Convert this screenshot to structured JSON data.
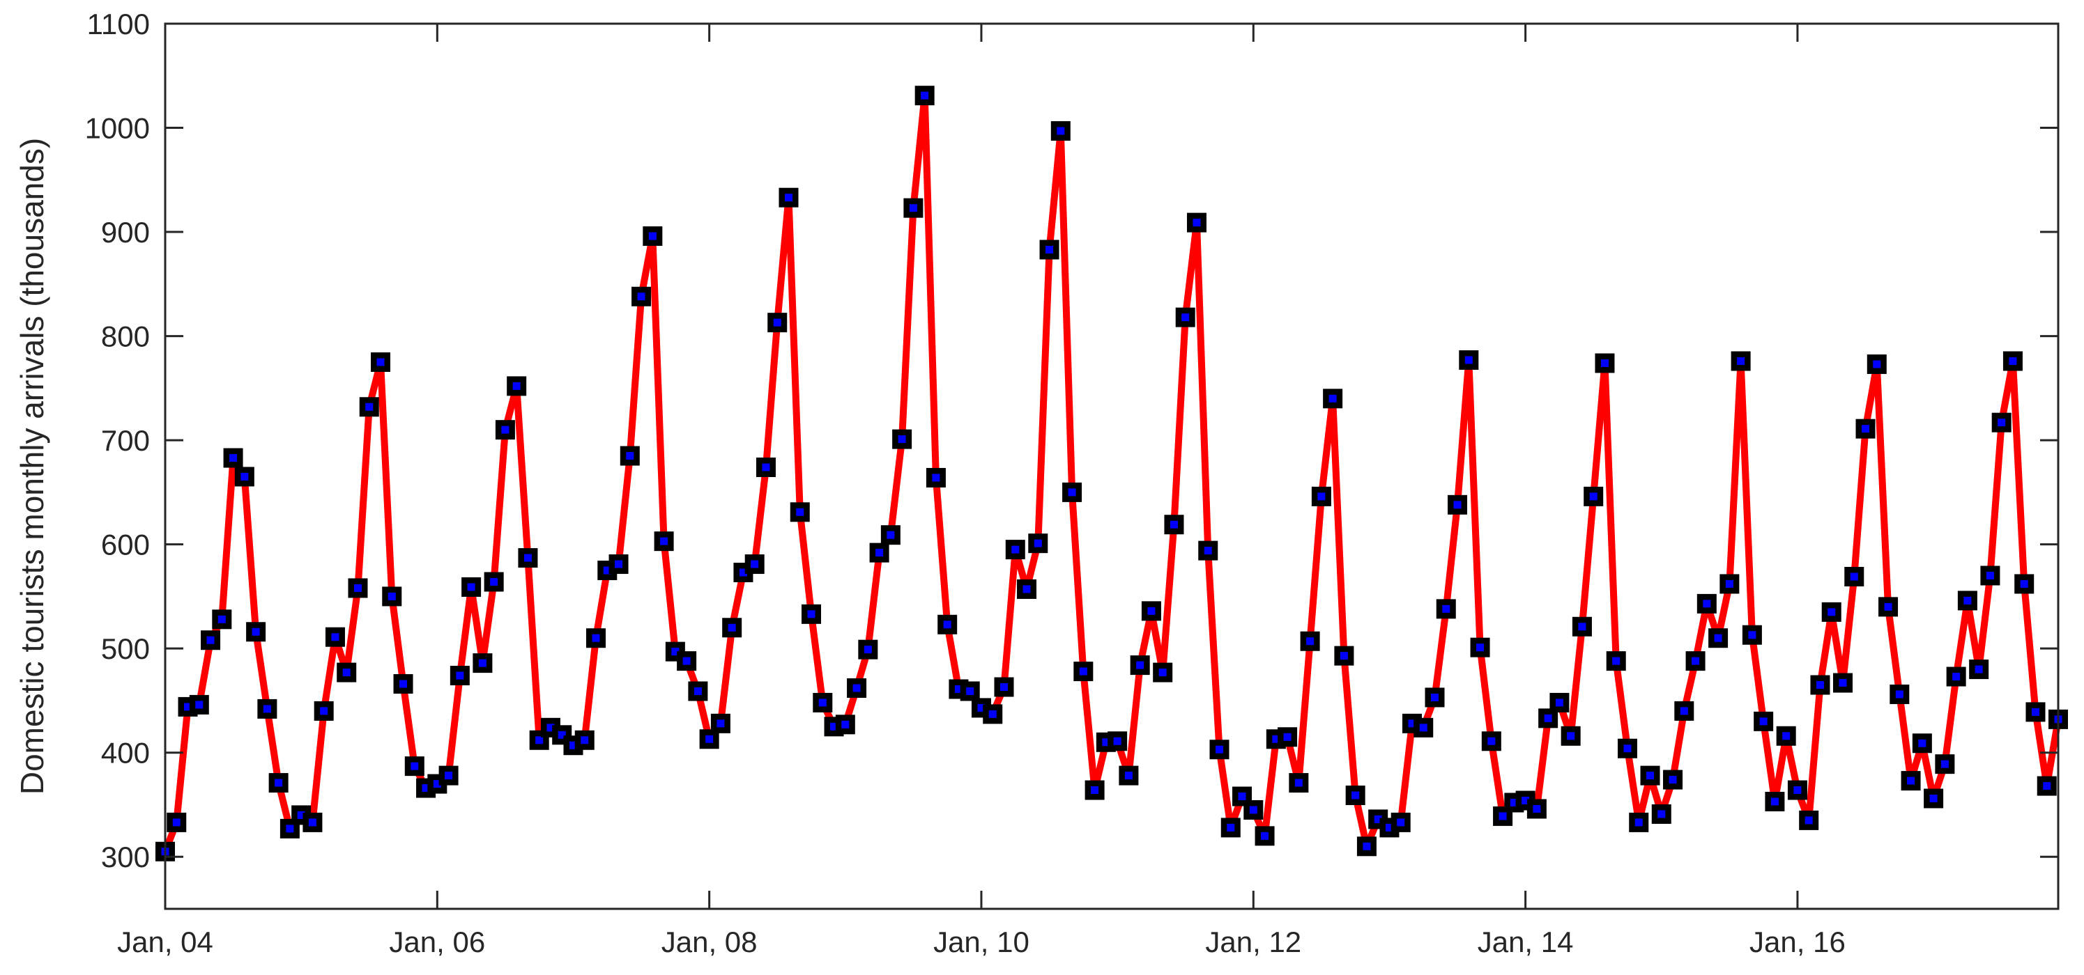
{
  "chart_data": {
    "type": "line",
    "title": "",
    "xlabel": "",
    "ylabel": "Domestic tourists monthly arrivals (thousands)",
    "x_start": "Jan, 04",
    "x_frequency": "monthly",
    "x_ticks": [
      "Jan, 04",
      "Jan, 06",
      "Jan, 08",
      "Jan, 10",
      "Jan, 12",
      "Jan, 14",
      "Jan, 16"
    ],
    "y_ticks": [
      300,
      400,
      500,
      600,
      700,
      800,
      900,
      1000,
      1100
    ],
    "ylim": [
      250,
      1100
    ],
    "xlim": [
      "Jan, 04",
      "Dec, 17"
    ],
    "grid": false,
    "colors": {
      "line": "#ff0000",
      "marker_edge": "#000000",
      "marker_fill": "#0000ff",
      "axis": "#262626"
    },
    "series": [
      {
        "values": [
          305,
          333,
          444,
          446,
          508,
          528,
          683,
          665,
          516,
          442,
          371,
          327,
          340,
          333,
          440,
          511,
          477,
          558,
          732,
          775,
          550,
          466,
          387,
          366,
          370,
          378,
          474,
          559,
          486,
          564,
          710,
          752,
          587,
          412,
          424,
          417,
          407,
          412,
          510,
          575,
          581,
          685,
          838,
          896,
          603,
          497,
          488,
          459,
          413,
          428,
          520,
          573,
          581,
          674,
          813,
          933,
          631,
          533,
          448,
          425,
          427,
          462,
          499,
          592,
          609,
          701,
          923,
          1031,
          664,
          523,
          461,
          459,
          443,
          437,
          463,
          595,
          557,
          601,
          883,
          997,
          650,
          478,
          364,
          410,
          411,
          378,
          484,
          536,
          477,
          619,
          818,
          909,
          594,
          403,
          328,
          358,
          345,
          320,
          413,
          415,
          371,
          507,
          646,
          740,
          493,
          359,
          310,
          336,
          328,
          333,
          428,
          424,
          453,
          538,
          638,
          777,
          501,
          411,
          339,
          352,
          354,
          346,
          433,
          448,
          416,
          521,
          646,
          774,
          488,
          404,
          333,
          378,
          341,
          374,
          440,
          488,
          543,
          510,
          562,
          776,
          513,
          430,
          353,
          416,
          364,
          335,
          465,
          535,
          467,
          569,
          711,
          773,
          540,
          456,
          373,
          409,
          356,
          389,
          473,
          546,
          480,
          570,
          717,
          776,
          562,
          439,
          368,
          432
        ]
      }
    ]
  }
}
